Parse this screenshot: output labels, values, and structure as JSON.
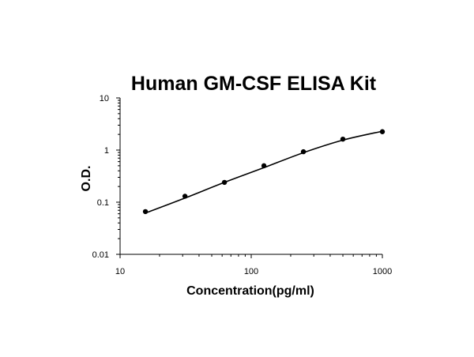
{
  "chart_data": {
    "type": "scatter",
    "title": "Human GM-CSF ELISA Kit",
    "xlabel": "Concentration(pg/ml)",
    "ylabel": "O.D.",
    "x_scale": "log",
    "y_scale": "log",
    "xlim": [
      10,
      1000
    ],
    "ylim": [
      0.01,
      10
    ],
    "x_ticks": [
      {
        "value": 10,
        "label": "10"
      },
      {
        "value": 100,
        "label": "100"
      },
      {
        "value": 1000,
        "label": "1000"
      }
    ],
    "y_ticks": [
      {
        "value": 0.01,
        "label": "0.01"
      },
      {
        "value": 0.1,
        "label": "0.1"
      },
      {
        "value": 1,
        "label": "1"
      },
      {
        "value": 10,
        "label": "10"
      }
    ],
    "grid": false,
    "legend": "none",
    "colors": {
      "points": "#000000",
      "curve": "#000000",
      "axes": "#000000"
    },
    "series": [
      {
        "x": [
          15.6,
          31.25,
          62.5,
          125,
          250,
          500,
          1000
        ],
        "y": [
          0.066,
          0.13,
          0.24,
          0.5,
          0.93,
          1.62,
          2.25
        ]
      }
    ],
    "fit_curve": {
      "x": [
        15.6,
        31.25,
        62.5,
        125,
        250,
        500,
        1000
      ],
      "y": [
        0.062,
        0.12,
        0.24,
        0.46,
        0.89,
        1.55,
        2.3
      ]
    }
  }
}
